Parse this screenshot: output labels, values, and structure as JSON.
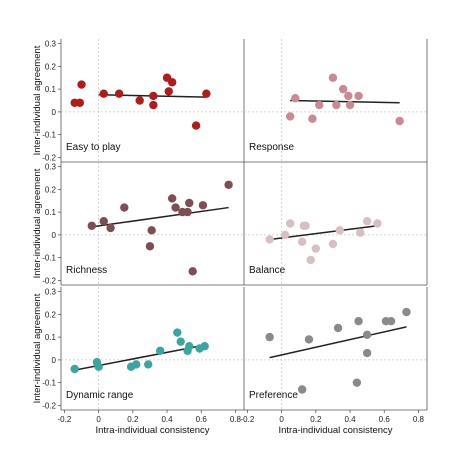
{
  "colors": {
    "easy": "#b31b1b",
    "response": "#c98a94",
    "richness": "#7d4f55",
    "balance": "#d8bfc2",
    "dynamic": "#3aa6a0",
    "preference": "#8a8a8a",
    "fit_line": "#222222",
    "zero_line": "#c9c9c9"
  },
  "chart_data": {
    "type": "scatter",
    "ylabel": "Inter-individual agreement",
    "xlabel": "Intra-individual consistency",
    "x_ticks": [
      "-0.2",
      "0",
      "0.2",
      "0.4",
      "0.6",
      "0.8"
    ],
    "y_ticks": [
      "-0.2",
      "-0.1",
      "0",
      "0.1",
      "0.2",
      "0.3"
    ],
    "xlim": [
      -0.22,
      0.85
    ],
    "ylim": [
      -0.22,
      0.32
    ],
    "grid": false,
    "zero_lines": true,
    "panels": [
      {
        "label": "Easy to play",
        "color_key": "easy",
        "points": [
          [
            -0.14,
            0.04
          ],
          [
            -0.11,
            0.04
          ],
          [
            -0.1,
            0.12
          ],
          [
            0.03,
            0.08
          ],
          [
            0.12,
            0.08
          ],
          [
            0.24,
            0.05
          ],
          [
            0.32,
            0.07
          ],
          [
            0.32,
            0.03
          ],
          [
            0.4,
            0.15
          ],
          [
            0.41,
            0.09
          ],
          [
            0.43,
            0.13
          ],
          [
            0.57,
            -0.06
          ],
          [
            0.63,
            0.08
          ]
        ],
        "fit": [
          [
            0.0,
            0.075
          ],
          [
            0.63,
            0.065
          ]
        ]
      },
      {
        "label": "Response",
        "color_key": "response",
        "points": [
          [
            0.05,
            -0.02
          ],
          [
            0.08,
            0.06
          ],
          [
            0.18,
            -0.03
          ],
          [
            0.22,
            0.03
          ],
          [
            0.3,
            0.15
          ],
          [
            0.32,
            0.03
          ],
          [
            0.36,
            0.1
          ],
          [
            0.39,
            0.07
          ],
          [
            0.4,
            0.03
          ],
          [
            0.45,
            0.07
          ],
          [
            0.69,
            -0.04
          ]
        ],
        "fit": [
          [
            0.05,
            0.05
          ],
          [
            0.69,
            0.04
          ]
        ]
      },
      {
        "label": "Richness",
        "color_key": "richness",
        "points": [
          [
            -0.04,
            0.04
          ],
          [
            0.03,
            0.06
          ],
          [
            0.07,
            0.03
          ],
          [
            0.15,
            0.12
          ],
          [
            0.3,
            -0.05
          ],
          [
            0.31,
            0.02
          ],
          [
            0.43,
            0.16
          ],
          [
            0.45,
            0.12
          ],
          [
            0.49,
            0.1
          ],
          [
            0.53,
            0.14
          ],
          [
            0.52,
            0.1
          ],
          [
            0.55,
            -0.16
          ],
          [
            0.61,
            0.13
          ],
          [
            0.76,
            0.22
          ]
        ],
        "fit": [
          [
            -0.04,
            0.035
          ],
          [
            0.76,
            0.12
          ]
        ]
      },
      {
        "label": "Balance",
        "color_key": "balance",
        "points": [
          [
            -0.07,
            -0.02
          ],
          [
            0.02,
            0.0
          ],
          [
            0.05,
            0.05
          ],
          [
            0.13,
            0.04
          ],
          [
            0.12,
            -0.03
          ],
          [
            0.14,
            0.04
          ],
          [
            0.17,
            -0.11
          ],
          [
            0.2,
            -0.06
          ],
          [
            0.3,
            -0.04
          ],
          [
            0.34,
            0.02
          ],
          [
            0.46,
            0.01
          ],
          [
            0.5,
            0.06
          ],
          [
            0.56,
            0.05
          ]
        ],
        "fit": [
          [
            -0.07,
            -0.02
          ],
          [
            0.56,
            0.04
          ]
        ]
      },
      {
        "label": "Dynamic range",
        "color_key": "dynamic",
        "points": [
          [
            -0.14,
            -0.04
          ],
          [
            -0.01,
            -0.01
          ],
          [
            0.0,
            -0.03
          ],
          [
            0.19,
            -0.03
          ],
          [
            0.22,
            -0.02
          ],
          [
            0.29,
            -0.02
          ],
          [
            0.36,
            0.04
          ],
          [
            0.46,
            0.12
          ],
          [
            0.48,
            0.08
          ],
          [
            0.52,
            0.04
          ],
          [
            0.53,
            0.06
          ],
          [
            0.59,
            0.05
          ],
          [
            0.62,
            0.06
          ]
        ],
        "fit": [
          [
            -0.14,
            -0.045
          ],
          [
            0.62,
            0.065
          ]
        ]
      },
      {
        "label": "Preference",
        "color_key": "preference",
        "points": [
          [
            -0.07,
            0.1
          ],
          [
            0.12,
            -0.13
          ],
          [
            0.16,
            0.09
          ],
          [
            0.33,
            0.14
          ],
          [
            0.45,
            0.17
          ],
          [
            0.44,
            -0.1
          ],
          [
            0.5,
            0.11
          ],
          [
            0.5,
            0.03
          ],
          [
            0.61,
            0.17
          ],
          [
            0.64,
            0.17
          ],
          [
            0.73,
            0.21
          ]
        ],
        "fit": [
          [
            -0.07,
            0.01
          ],
          [
            0.73,
            0.145
          ]
        ]
      }
    ]
  }
}
